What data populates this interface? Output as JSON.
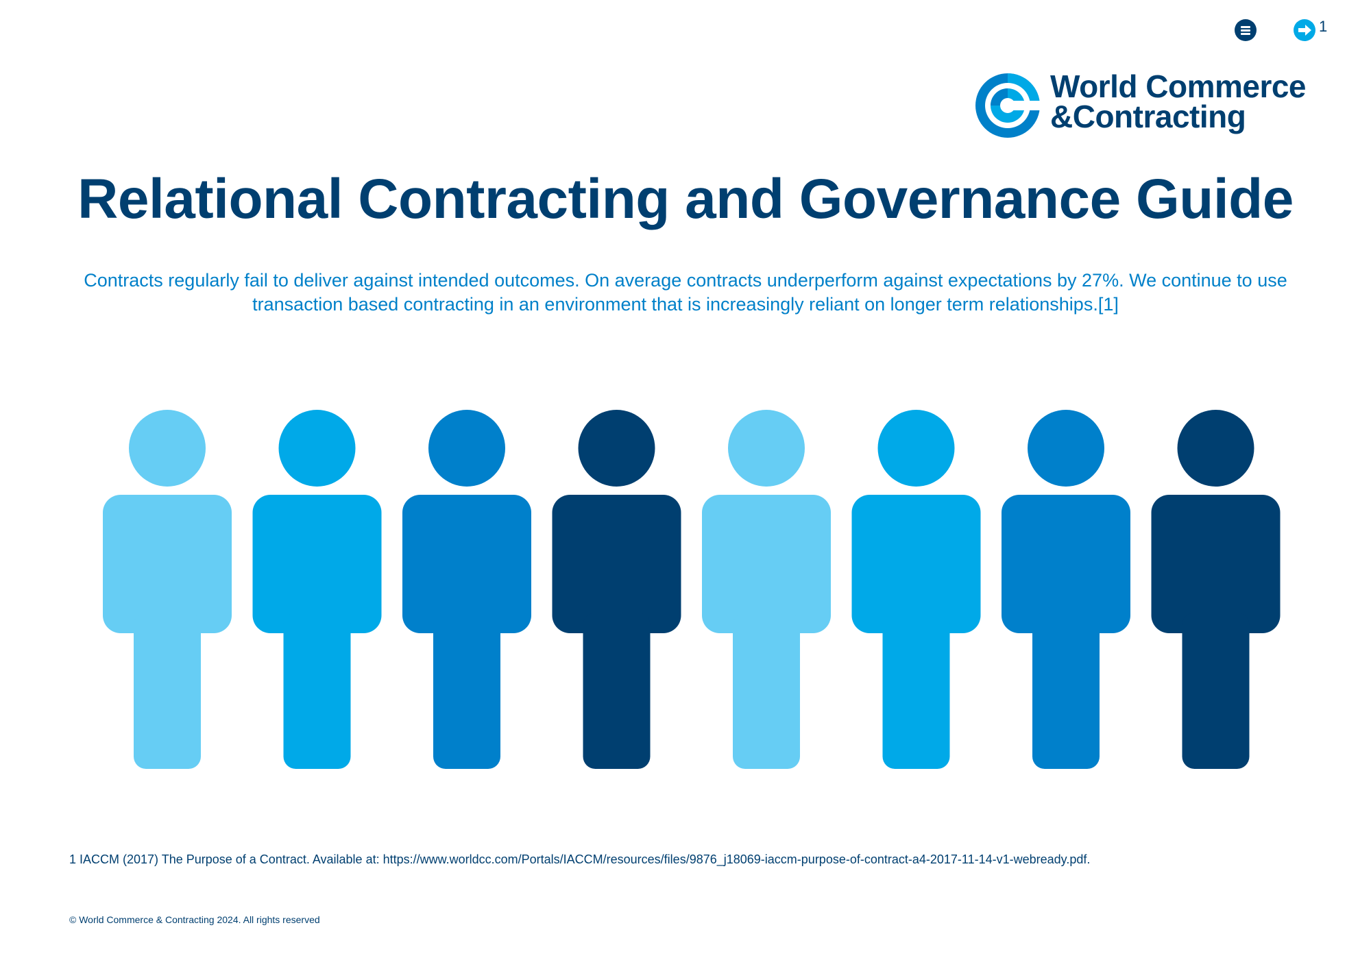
{
  "nav": {
    "menu_icon": "menu-icon",
    "next_icon": "arrow-right-icon",
    "page_number": "1"
  },
  "logo": {
    "line1": "World Commerce",
    "line2": "&Contracting",
    "colors": {
      "dark": "#003f70",
      "mid": "#0080c9",
      "bright": "#00a9e6"
    }
  },
  "title": "Relational Contracting and Governance Guide",
  "intro": "Contracts regularly fail to deliver against intended outcomes. On average contracts underperform against expectations by 27%. We continue to use transaction based contracting in an environment that is increasingly reliant on longer term relationships.[1]",
  "people": {
    "icon": "person-icon",
    "colors": [
      "#66cdf4",
      "#00a9e8",
      "#0080cb",
      "#003f70",
      "#66cdf4",
      "#00a9e8",
      "#0080cb",
      "#003f70"
    ]
  },
  "footnote": "1 IACCM (2017) The Purpose of a Contract. Available at: https://www.worldcc.com/Portals/IACCM/resources/files/9876_j18069-iaccm-purpose-of-contract-a4-2017-11-14-v1-webready.pdf.",
  "copyright": "© World Commerce & Contracting 2024. All rights reserved"
}
